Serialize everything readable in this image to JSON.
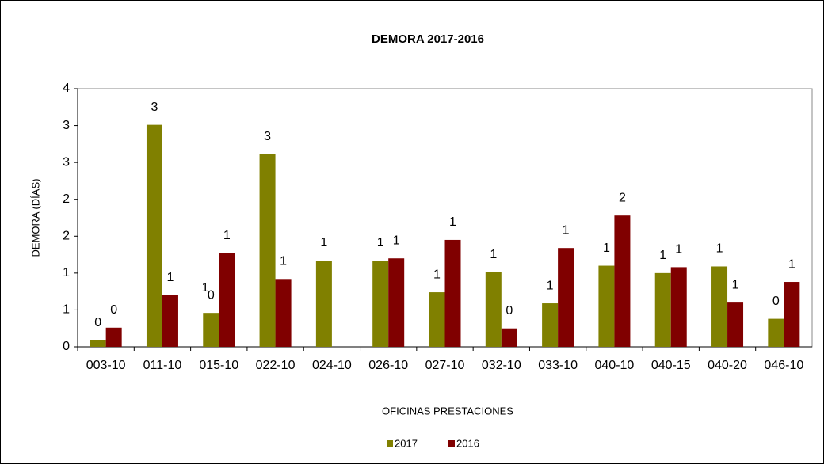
{
  "chart_data": {
    "type": "bar",
    "title": "DEMORA 2017-2016",
    "x_label": "OFICINAS PRESTACIONES",
    "y_label": "DEMORA (DÍAS)",
    "categories": [
      "003-10",
      "011-10",
      "015-10",
      "022-10",
      "024-10",
      "026-10",
      "027-10",
      "032-10",
      "033-10",
      "040-10",
      "040-15",
      "040-20",
      "046-10"
    ],
    "series": [
      {
        "name": "2017",
        "color": "#808000",
        "values": [
          0.09,
          3.01,
          0.46,
          2.61,
          1.17,
          1.17,
          0.74,
          1.01,
          0.59,
          1.1,
          1.0,
          1.09,
          0.38
        ],
        "value_labels": [
          "0",
          "3",
          "0",
          "3",
          "1",
          "1",
          "1",
          "1",
          "1",
          "1",
          "1",
          "1",
          "0"
        ]
      },
      {
        "name": "2016",
        "color": "#800000",
        "values": [
          0.26,
          0.7,
          1.27,
          0.92,
          null,
          1.2,
          1.45,
          0.25,
          1.34,
          1.78,
          1.08,
          0.6,
          0.88
        ],
        "value_labels": [
          "0",
          "1",
          "1",
          "1",
          null,
          "1",
          "1",
          "0",
          "1",
          "2",
          "1",
          "1",
          "1"
        ]
      }
    ],
    "annotations": [
      "1"
    ],
    "ylim": [
      0,
      3.5
    ],
    "yticks": [
      0,
      {
        "value": 0.5,
        "label": "1"
      },
      1,
      {
        "value": 1.5,
        "label": "2"
      },
      2,
      {
        "value": 2.5,
        "label": "3"
      },
      3,
      {
        "value": 3.5,
        "label": "4"
      }
    ],
    "legend": "bottom"
  }
}
